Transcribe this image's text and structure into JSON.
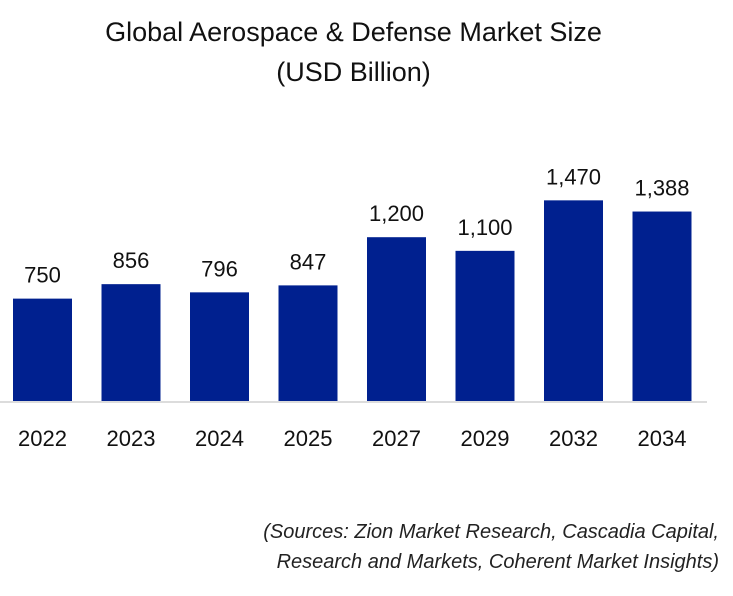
{
  "chart_data": {
    "type": "bar",
    "title": "Global Aerospace & Defense Market Size",
    "subtitle": "(USD Billion)",
    "categories": [
      "2022",
      "2023",
      "2024",
      "2025",
      "2027",
      "2029",
      "2032",
      "2034"
    ],
    "values": [
      750,
      856,
      796,
      847,
      1200,
      1100,
      1470,
      1388
    ],
    "data_labels": [
      "750",
      "856",
      "796",
      "847",
      "1,200",
      "1,100",
      "1,470",
      "1,388"
    ],
    "xlabel": "",
    "ylabel": "",
    "ylim": [
      0,
      1600
    ],
    "grid": false,
    "bar_color": "#00208f",
    "source_line1": "(Sources: Zion Market Research, Cascadia Capital,",
    "source_line2": "Research and Markets, Coherent Market Insights)"
  }
}
